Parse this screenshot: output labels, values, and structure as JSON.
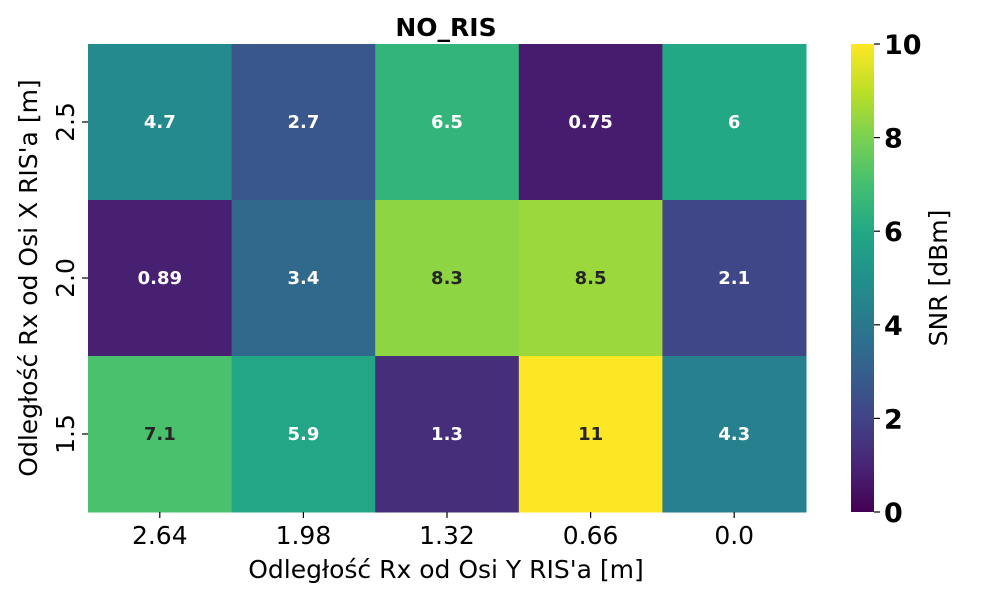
{
  "chart_data": {
    "type": "heatmap",
    "title": "NO_RIS",
    "xlabel": "Odległość Rx od Osi Y RIS'a [m]",
    "ylabel": "Odległość Rx od Osi X RIS'a [m]",
    "x_categories": [
      "2.64",
      "1.98",
      "1.32",
      "0.66",
      "0.0"
    ],
    "y_categories": [
      "2.5",
      "2.0",
      "1.5"
    ],
    "values": [
      [
        4.7,
        2.7,
        6.5,
        0.75,
        6
      ],
      [
        0.89,
        3.4,
        8.3,
        8.5,
        2.1
      ],
      [
        7.1,
        5.9,
        1.3,
        11,
        4.3
      ]
    ],
    "value_labels": [
      [
        "4.7",
        "2.7",
        "6.5",
        "0.75",
        "6"
      ],
      [
        "0.89",
        "3.4",
        "8.3",
        "8.5",
        "2.1"
      ],
      [
        "7.1",
        "5.9",
        "1.3",
        "11",
        "4.3"
      ]
    ],
    "colorbar": {
      "label": "SNR [dBm]",
      "vmin": 0,
      "vmax": 10,
      "ticks": [
        "0",
        "2",
        "4",
        "6",
        "8",
        "10"
      ],
      "colormap": "viridis"
    },
    "grid": false
  }
}
